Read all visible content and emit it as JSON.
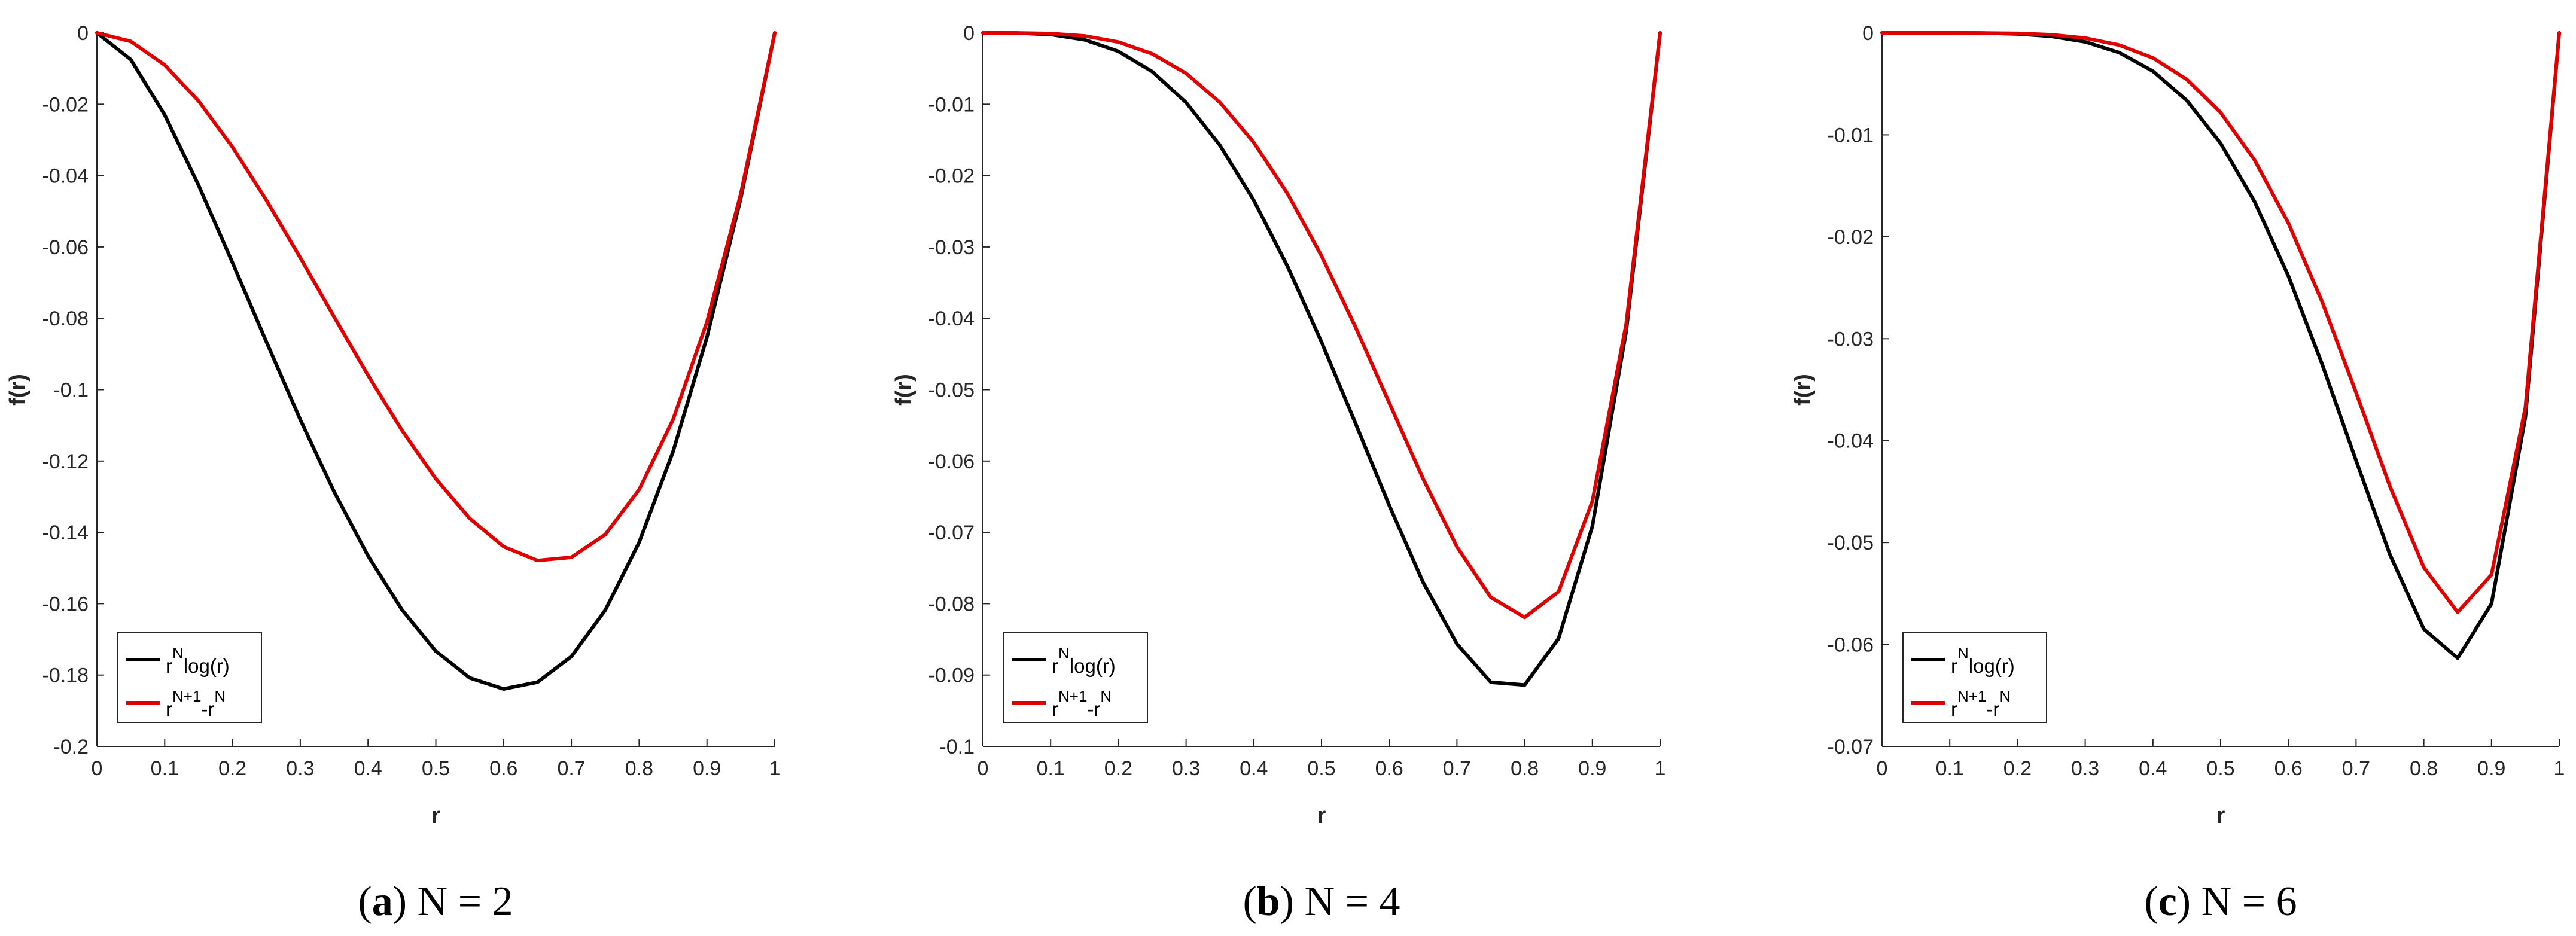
{
  "chart_data": [
    {
      "type": "line",
      "caption_letter": "a",
      "caption_text": "N = 2",
      "xlabel": "r",
      "ylabel": "f(r)",
      "xlim": [
        0,
        1
      ],
      "ylim": [
        -0.2,
        0
      ],
      "xticks": [
        0,
        0.1,
        0.2,
        0.3,
        0.4,
        0.5,
        0.6,
        0.7,
        0.8,
        0.9,
        1
      ],
      "xticklabels": [
        "0",
        "0.1",
        "0.2",
        "0.3",
        "0.4",
        "0.5",
        "0.6",
        "0.7",
        "0.8",
        "0.9",
        "1"
      ],
      "yticks": [
        0,
        -0.02,
        -0.04,
        -0.06,
        -0.08,
        -0.1,
        -0.12,
        -0.14,
        -0.16,
        -0.18,
        -0.2
      ],
      "yticklabels": [
        "0",
        "-0.02",
        "-0.04",
        "-0.06",
        "-0.08",
        "-0.1",
        "-0.12",
        "-0.14",
        "-0.16",
        "-0.18",
        "-0.2"
      ],
      "x": [
        0,
        0.05,
        0.1,
        0.15,
        0.2,
        0.25,
        0.3,
        0.35,
        0.4,
        0.45,
        0.5,
        0.55,
        0.6,
        0.65,
        0.7,
        0.75,
        0.8,
        0.85,
        0.9,
        0.95,
        1
      ],
      "series": [
        {
          "name": "r^N log(r)",
          "color": "#000000",
          "values": [
            0,
            -0.0075,
            -0.023,
            -0.0427,
            -0.0644,
            -0.0866,
            -0.1084,
            -0.1286,
            -0.1466,
            -0.1617,
            -0.1733,
            -0.1808,
            -0.1839,
            -0.182,
            -0.1748,
            -0.1618,
            -0.1428,
            -0.1174,
            -0.0853,
            -0.0463,
            0
          ]
        },
        {
          "name": "r^(N+1) - r^N",
          "color": "#e00000",
          "values": [
            0,
            -0.0024,
            -0.009,
            -0.0191,
            -0.032,
            -0.0469,
            -0.063,
            -0.0796,
            -0.096,
            -0.1114,
            -0.125,
            -0.1361,
            -0.144,
            -0.1479,
            -0.147,
            -0.1406,
            -0.128,
            -0.1084,
            -0.081,
            -0.0451,
            0
          ]
        }
      ],
      "legend": {
        "placement": "bottom-left",
        "entries": [
          {
            "base": "r",
            "sup": "N",
            "rest": "log(r)",
            "color": "#000000"
          },
          {
            "base": "r",
            "sup": "N+1",
            "mid": "-r",
            "sup2": "N",
            "color": "#e00000"
          }
        ]
      },
      "grid": false
    },
    {
      "type": "line",
      "caption_letter": "b",
      "caption_text": "N = 4",
      "xlabel": "r",
      "ylabel": "f(r)",
      "xlim": [
        0,
        1
      ],
      "ylim": [
        -0.1,
        0
      ],
      "xticks": [
        0,
        0.1,
        0.2,
        0.3,
        0.4,
        0.5,
        0.6,
        0.7,
        0.8,
        0.9,
        1
      ],
      "xticklabels": [
        "0",
        "0.1",
        "0.2",
        "0.3",
        "0.4",
        "0.5",
        "0.6",
        "0.7",
        "0.8",
        "0.9",
        "1"
      ],
      "yticks": [
        0,
        -0.01,
        -0.02,
        -0.03,
        -0.04,
        -0.05,
        -0.06,
        -0.07,
        -0.08,
        -0.09,
        -0.1
      ],
      "yticklabels": [
        "0",
        "-0.01",
        "-0.02",
        "-0.03",
        "-0.04",
        "-0.05",
        "-0.06",
        "-0.07",
        "-0.08",
        "-0.09",
        "-0.1"
      ],
      "x": [
        0,
        0.05,
        0.1,
        0.15,
        0.2,
        0.25,
        0.3,
        0.35,
        0.4,
        0.45,
        0.5,
        0.55,
        0.6,
        0.65,
        0.7,
        0.75,
        0.8,
        0.85,
        0.9,
        0.95,
        1
      ],
      "series": [
        {
          "name": "r^N log(r)",
          "color": "#000000",
          "values": [
            0,
            -1.9e-05,
            -0.00023,
            -0.00096,
            -0.00258,
            -0.00542,
            -0.00975,
            -0.01575,
            -0.02346,
            -0.03274,
            -0.04332,
            -0.05467,
            -0.06621,
            -0.07699,
            -0.08563,
            -0.09101,
            -0.0914,
            -0.08489,
            -0.06914,
            -0.04178,
            0
          ]
        },
        {
          "name": "r^(N+1) - r^N",
          "color": "#e00000",
          "values": [
            0,
            -5.9e-06,
            -9e-05,
            -0.00043,
            -0.00128,
            -0.00293,
            -0.00567,
            -0.00975,
            -0.01536,
            -0.02255,
            -0.03125,
            -0.04118,
            -0.05184,
            -0.06248,
            -0.07203,
            -0.0791,
            -0.08192,
            -0.07832,
            -0.06561,
            -0.04073,
            0
          ]
        }
      ],
      "legend": {
        "placement": "bottom-left",
        "entries": [
          {
            "base": "r",
            "sup": "N",
            "rest": "log(r)",
            "color": "#000000"
          },
          {
            "base": "r",
            "sup": "N+1",
            "mid": "-r",
            "sup2": "N",
            "color": "#e00000"
          }
        ]
      },
      "grid": false
    },
    {
      "type": "line",
      "caption_letter": "c",
      "caption_text": "N = 6",
      "xlabel": "r",
      "ylabel": "f(r)",
      "xlim": [
        0,
        1
      ],
      "ylim": [
        -0.07,
        0
      ],
      "xticks": [
        0,
        0.1,
        0.2,
        0.3,
        0.4,
        0.5,
        0.6,
        0.7,
        0.8,
        0.9,
        1
      ],
      "xticklabels": [
        "0",
        "0.1",
        "0.2",
        "0.3",
        "0.4",
        "0.5",
        "0.6",
        "0.7",
        "0.8",
        "0.9",
        "1"
      ],
      "yticks": [
        0,
        -0.01,
        -0.02,
        -0.03,
        -0.04,
        -0.05,
        -0.06,
        -0.07
      ],
      "yticklabels": [
        "0",
        "-0.01",
        "-0.02",
        "-0.03",
        "-0.04",
        "-0.05",
        "-0.06",
        "-0.07"
      ],
      "x": [
        0,
        0.05,
        0.1,
        0.15,
        0.2,
        0.25,
        0.3,
        0.35,
        0.4,
        0.45,
        0.5,
        0.55,
        0.6,
        0.65,
        0.7,
        0.75,
        0.8,
        0.85,
        0.9,
        0.95,
        1
      ],
      "series": [
        {
          "name": "r^N log(r)",
          "color": "#000000",
          "values": [
            0,
            0,
            -2.3e-06,
            -2.2e-05,
            -0.000103,
            -0.000339,
            -0.000878,
            -0.00193,
            -0.003754,
            -0.006631,
            -0.01083,
            -0.01654,
            -0.02384,
            -0.03253,
            -0.04196,
            -0.05119,
            -0.05849,
            -0.06134,
            -0.056,
            -0.0377,
            0
          ]
        },
        {
          "name": "r^(N+1) - r^N",
          "color": "#e00000",
          "values": [
            0,
            0,
            -9e-07,
            -9e-06,
            -5.1e-05,
            -0.000183,
            -0.00051,
            -0.001192,
            -0.002458,
            -0.004566,
            -0.007813,
            -0.01246,
            -0.01866,
            -0.0264,
            -0.03529,
            -0.04449,
            -0.05243,
            -0.05684,
            -0.05314,
            -0.03676,
            0
          ]
        }
      ],
      "legend": {
        "placement": "bottom-left",
        "entries": [
          {
            "base": "r",
            "sup": "N",
            "rest": "log(r)",
            "color": "#000000"
          },
          {
            "base": "r",
            "sup": "N+1",
            "mid": "-r",
            "sup2": "N",
            "color": "#e00000"
          }
        ]
      },
      "grid": false
    }
  ]
}
